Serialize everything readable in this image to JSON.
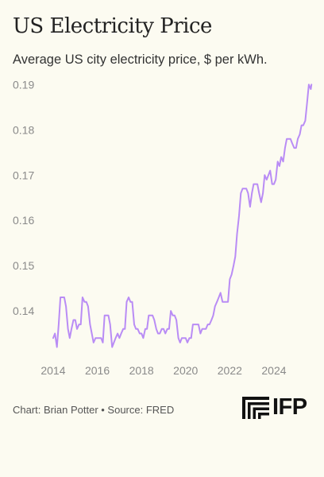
{
  "chart_data": {
    "type": "line",
    "title": "US Electricity Price",
    "subtitle": "Average US city electricity price, $ per kWh.",
    "xlabel": "",
    "ylabel": "",
    "xlim": [
      2013.75,
      2025.8
    ],
    "ylim": [
      0.13,
      0.192
    ],
    "x_ticks": [
      2014,
      2016,
      2018,
      2020,
      2022,
      2024
    ],
    "y_ticks": [
      0.14,
      0.15,
      0.16,
      0.17,
      0.18,
      0.19
    ],
    "grid": "off",
    "series": [
      {
        "color": "#b98cf5",
        "points": [
          [
            2014.0,
            0.134
          ],
          [
            2014.08,
            0.135
          ],
          [
            2014.17,
            0.132
          ],
          [
            2014.25,
            0.137
          ],
          [
            2014.33,
            0.143
          ],
          [
            2014.42,
            0.143
          ],
          [
            2014.5,
            0.143
          ],
          [
            2014.58,
            0.141
          ],
          [
            2014.67,
            0.136
          ],
          [
            2014.75,
            0.134
          ],
          [
            2014.83,
            0.136
          ],
          [
            2014.92,
            0.138
          ],
          [
            2015.0,
            0.138
          ],
          [
            2015.08,
            0.136
          ],
          [
            2015.17,
            0.137
          ],
          [
            2015.25,
            0.137
          ],
          [
            2015.33,
            0.143
          ],
          [
            2015.42,
            0.142
          ],
          [
            2015.5,
            0.142
          ],
          [
            2015.58,
            0.141
          ],
          [
            2015.67,
            0.137
          ],
          [
            2015.75,
            0.135
          ],
          [
            2015.83,
            0.133
          ],
          [
            2015.92,
            0.134
          ],
          [
            2016.0,
            0.134
          ],
          [
            2016.08,
            0.134
          ],
          [
            2016.17,
            0.134
          ],
          [
            2016.25,
            0.133
          ],
          [
            2016.33,
            0.139
          ],
          [
            2016.42,
            0.139
          ],
          [
            2016.5,
            0.139
          ],
          [
            2016.58,
            0.137
          ],
          [
            2016.67,
            0.132
          ],
          [
            2016.75,
            0.133
          ],
          [
            2016.83,
            0.134
          ],
          [
            2016.92,
            0.135
          ],
          [
            2017.0,
            0.134
          ],
          [
            2017.08,
            0.135
          ],
          [
            2017.17,
            0.136
          ],
          [
            2017.25,
            0.136
          ],
          [
            2017.33,
            0.142
          ],
          [
            2017.42,
            0.143
          ],
          [
            2017.5,
            0.142
          ],
          [
            2017.58,
            0.142
          ],
          [
            2017.67,
            0.137
          ],
          [
            2017.75,
            0.136
          ],
          [
            2017.83,
            0.136
          ],
          [
            2017.92,
            0.135
          ],
          [
            2018.0,
            0.135
          ],
          [
            2018.08,
            0.134
          ],
          [
            2018.17,
            0.136
          ],
          [
            2018.25,
            0.136
          ],
          [
            2018.33,
            0.139
          ],
          [
            2018.42,
            0.139
          ],
          [
            2018.5,
            0.139
          ],
          [
            2018.58,
            0.138
          ],
          [
            2018.67,
            0.136
          ],
          [
            2018.75,
            0.135
          ],
          [
            2018.83,
            0.135
          ],
          [
            2018.92,
            0.136
          ],
          [
            2019.0,
            0.136
          ],
          [
            2019.08,
            0.135
          ],
          [
            2019.17,
            0.136
          ],
          [
            2019.25,
            0.136
          ],
          [
            2019.33,
            0.14
          ],
          [
            2019.42,
            0.139
          ],
          [
            2019.5,
            0.139
          ],
          [
            2019.58,
            0.138
          ],
          [
            2019.67,
            0.134
          ],
          [
            2019.75,
            0.133
          ],
          [
            2019.83,
            0.134
          ],
          [
            2019.92,
            0.134
          ],
          [
            2020.0,
            0.134
          ],
          [
            2020.08,
            0.133
          ],
          [
            2020.17,
            0.134
          ],
          [
            2020.25,
            0.134
          ],
          [
            2020.33,
            0.137
          ],
          [
            2020.42,
            0.137
          ],
          [
            2020.5,
            0.137
          ],
          [
            2020.58,
            0.137
          ],
          [
            2020.67,
            0.135
          ],
          [
            2020.75,
            0.136
          ],
          [
            2020.83,
            0.136
          ],
          [
            2020.92,
            0.136
          ],
          [
            2021.0,
            0.137
          ],
          [
            2021.08,
            0.137
          ],
          [
            2021.17,
            0.138
          ],
          [
            2021.25,
            0.139
          ],
          [
            2021.33,
            0.141
          ],
          [
            2021.42,
            0.142
          ],
          [
            2021.5,
            0.143
          ],
          [
            2021.58,
            0.144
          ],
          [
            2021.67,
            0.142
          ],
          [
            2021.75,
            0.142
          ],
          [
            2021.83,
            0.142
          ],
          [
            2021.92,
            0.142
          ],
          [
            2022.0,
            0.147
          ],
          [
            2022.08,
            0.148
          ],
          [
            2022.17,
            0.15
          ],
          [
            2022.25,
            0.152
          ],
          [
            2022.33,
            0.157
          ],
          [
            2022.42,
            0.161
          ],
          [
            2022.5,
            0.166
          ],
          [
            2022.58,
            0.167
          ],
          [
            2022.67,
            0.167
          ],
          [
            2022.75,
            0.167
          ],
          [
            2022.83,
            0.166
          ],
          [
            2022.92,
            0.163
          ],
          [
            2023.0,
            0.166
          ],
          [
            2023.08,
            0.168
          ],
          [
            2023.17,
            0.168
          ],
          [
            2023.25,
            0.168
          ],
          [
            2023.33,
            0.166
          ],
          [
            2023.42,
            0.164
          ],
          [
            2023.5,
            0.166
          ],
          [
            2023.58,
            0.17
          ],
          [
            2023.67,
            0.169
          ],
          [
            2023.75,
            0.17
          ],
          [
            2023.83,
            0.171
          ],
          [
            2023.92,
            0.168
          ],
          [
            2024.0,
            0.168
          ],
          [
            2024.08,
            0.169
          ],
          [
            2024.17,
            0.173
          ],
          [
            2024.25,
            0.172
          ],
          [
            2024.33,
            0.174
          ],
          [
            2024.42,
            0.173
          ],
          [
            2024.5,
            0.176
          ],
          [
            2024.58,
            0.178
          ],
          [
            2024.67,
            0.178
          ],
          [
            2024.75,
            0.178
          ],
          [
            2024.83,
            0.177
          ],
          [
            2024.92,
            0.176
          ],
          [
            2025.0,
            0.176
          ],
          [
            2025.08,
            0.178
          ],
          [
            2025.17,
            0.179
          ],
          [
            2025.25,
            0.181
          ],
          [
            2025.33,
            0.181
          ],
          [
            2025.42,
            0.182
          ],
          [
            2025.5,
            0.186
          ],
          [
            2025.58,
            0.19
          ],
          [
            2025.67,
            0.189
          ],
          [
            2025.7,
            0.19
          ]
        ]
      }
    ]
  },
  "footer": {
    "credit": "Chart: Brian Potter • Source: FRED",
    "logo_text": "IFP"
  },
  "colors": {
    "background": "#fcfbf1",
    "line": "#b98cf5",
    "tick_label": "#8a8a8a"
  }
}
